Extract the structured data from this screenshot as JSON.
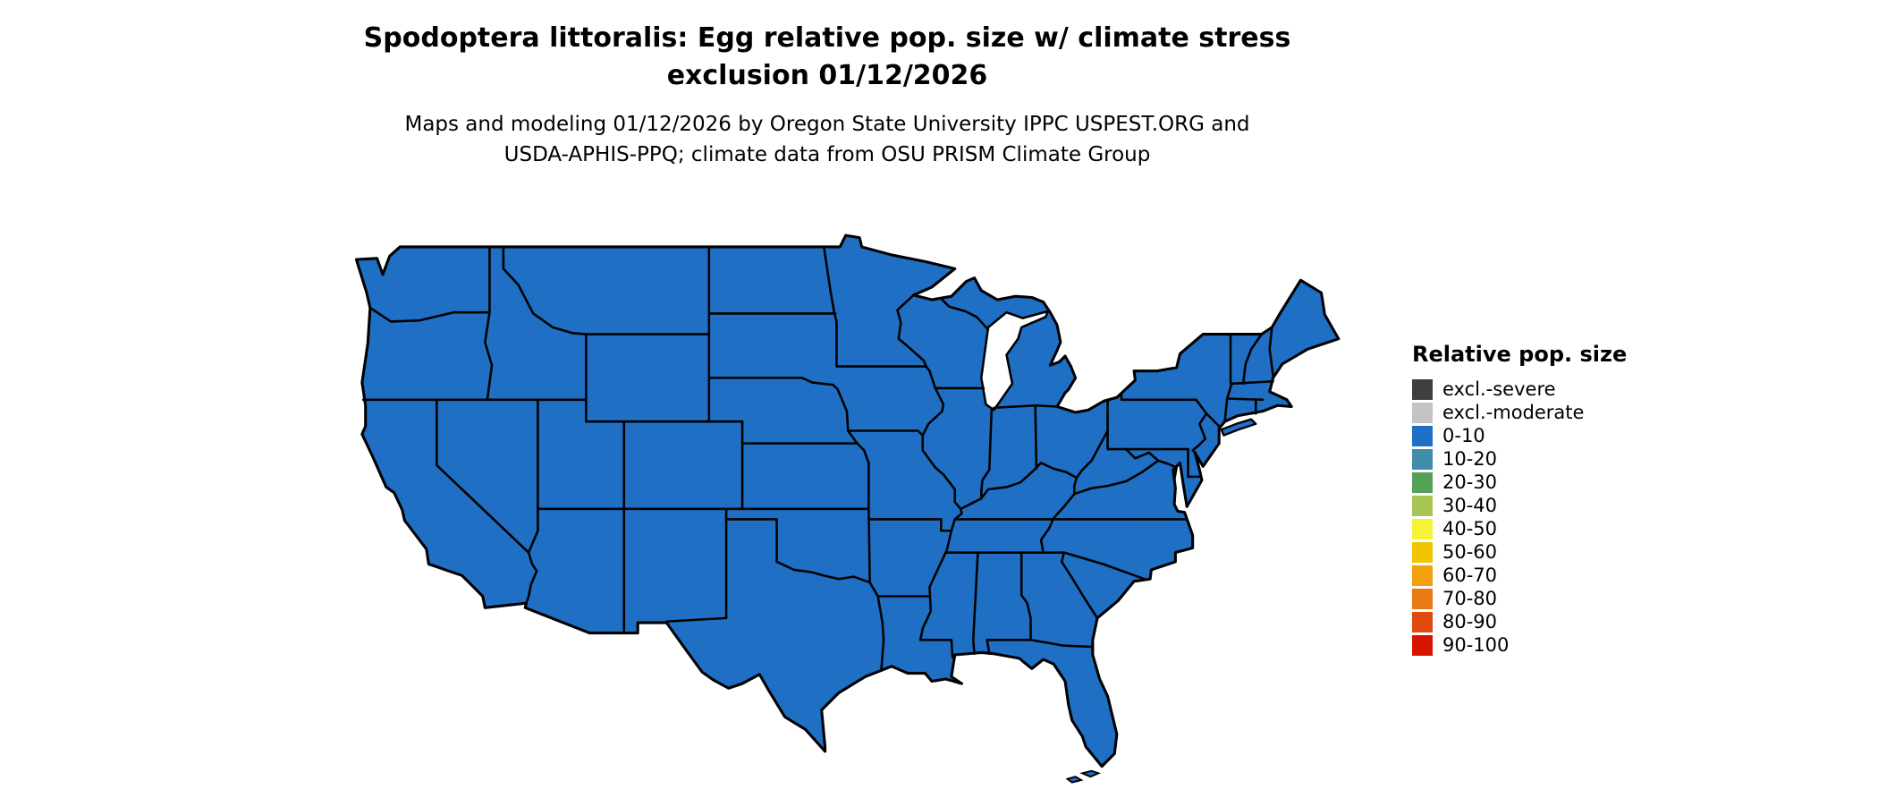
{
  "header": {
    "title_line1": "Spodoptera littoralis: Egg relative pop. size w/ climate stress",
    "title_line2": "exclusion 01/12/2026",
    "subtitle_line1": "Maps and modeling 01/12/2026 by Oregon State University IPPC USPEST.ORG and",
    "subtitle_line2": "USDA-APHIS-PPQ; climate data from OSU PRISM Climate Group"
  },
  "map": {
    "type": "choropleth",
    "region": "Contiguous United States with state borders",
    "value_class_everywhere": "0-10",
    "fill_color": "#1f6fc5",
    "border_color": "#000000",
    "water_color": "#ffffff"
  },
  "legend": {
    "title": "Relative pop. size",
    "items": [
      {
        "label": "excl.-severe",
        "color": "#3f3f3f"
      },
      {
        "label": "excl.-moderate",
        "color": "#c4c4c4"
      },
      {
        "label": "0-10",
        "color": "#1f6fc5"
      },
      {
        "label": "10-20",
        "color": "#3f8da8"
      },
      {
        "label": "20-30",
        "color": "#55a257"
      },
      {
        "label": "30-40",
        "color": "#a9c556"
      },
      {
        "label": "40-50",
        "color": "#f4f439"
      },
      {
        "label": "50-60",
        "color": "#f0c500"
      },
      {
        "label": "60-70",
        "color": "#f2a00c"
      },
      {
        "label": "70-80",
        "color": "#e87a14"
      },
      {
        "label": "80-90",
        "color": "#e04a0d"
      },
      {
        "label": "90-100",
        "color": "#d51500"
      }
    ]
  }
}
